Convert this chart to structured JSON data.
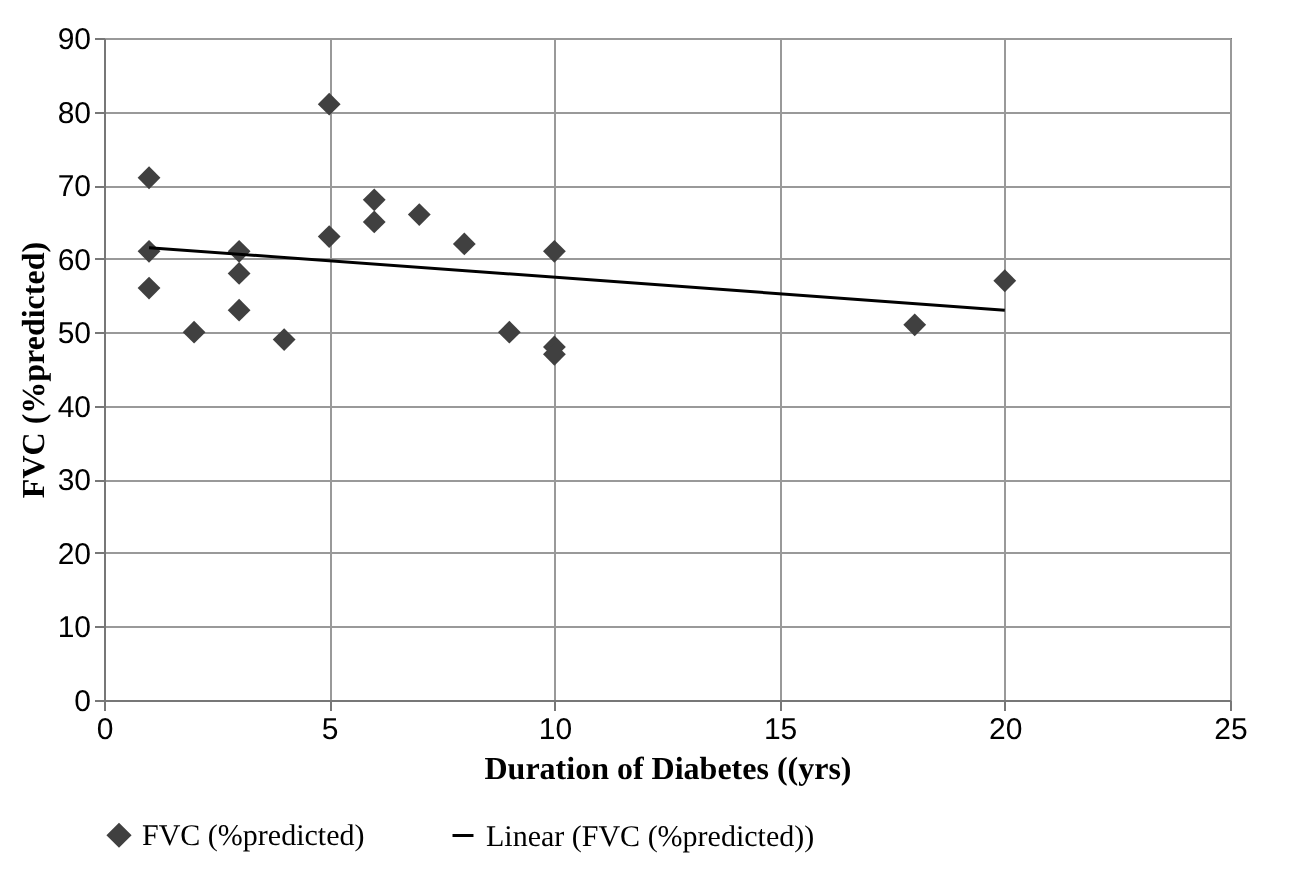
{
  "chart_data": {
    "type": "line",
    "xlabel": "Duration of Diabetes ((yrs)",
    "ylabel": "FVC (%predicted)",
    "xlim": [
      0,
      25
    ],
    "xticks": [
      0,
      5,
      10,
      15,
      20,
      25
    ],
    "ylim": [
      0,
      90
    ],
    "yticks": [
      0,
      10,
      20,
      30,
      40,
      50,
      60,
      70,
      80,
      90
    ],
    "grid": true,
    "legend": "bottom",
    "series": [
      {
        "name": "FVC (%predicted)",
        "type": "scatter",
        "marker": "diamond",
        "color": "#404040",
        "x": [
          1,
          1,
          1,
          2,
          3,
          3,
          3,
          4,
          5,
          5,
          6,
          6,
          7,
          8,
          9,
          10,
          10,
          10,
          18,
          20
        ],
        "values": [
          71,
          61,
          56,
          50,
          61,
          58,
          53,
          49,
          81,
          63,
          68,
          65,
          66,
          62,
          50,
          61,
          48,
          47,
          51,
          57
        ]
      },
      {
        "name": "Linear (FVC (%predicted))",
        "color": "#000000",
        "x": [
          1,
          20
        ],
        "values": [
          61.5,
          53
        ]
      }
    ]
  }
}
